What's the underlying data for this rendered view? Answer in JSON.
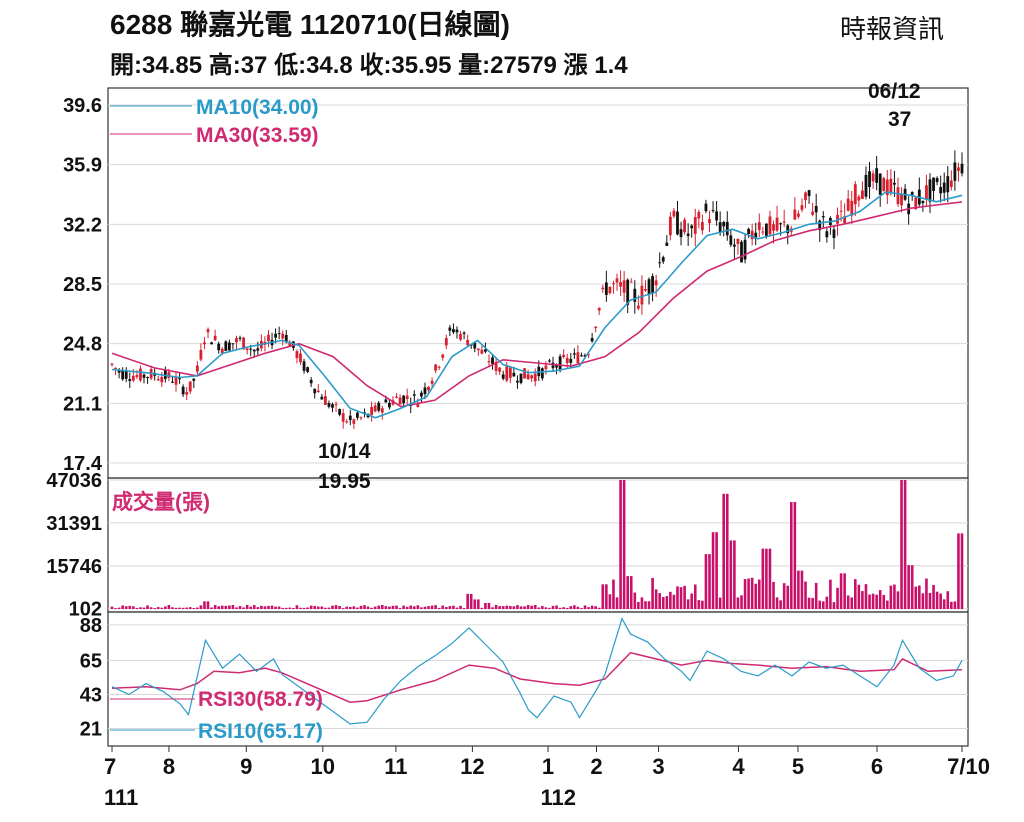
{
  "header": {
    "title": "6288  聯嘉光電 1120710(日線圖)",
    "ohlc": "開:34.85 高:37 低:34.8 收:35.95 量:27579 漲 1.4",
    "source": "時報資訊"
  },
  "colors": {
    "up": "#d8202f",
    "down": "#111111",
    "ma10": "#2a9bc8",
    "ma30": "#d02a72",
    "volume": "#c8106a",
    "rsi10": "#2a9bc8",
    "rsi30": "#d02a72",
    "grid": "#d8d8d8"
  },
  "chart_data": [
    {
      "type": "candlestick",
      "title": "",
      "ylim": [
        17.4,
        39.6
      ],
      "y_ticks": [
        "39.6",
        "35.9",
        "32.2",
        "28.5",
        "24.8",
        "21.1",
        "17.4"
      ],
      "series": [
        {
          "name": "MA10(34.00)",
          "key": "ma10"
        },
        {
          "name": "MA30(33.59)",
          "key": "ma30"
        }
      ],
      "annotations": [
        {
          "date": "10/14",
          "label_date": "10/14",
          "label_value": "19.95",
          "value": 19.95
        },
        {
          "date": "06/12",
          "label_date": "06/12",
          "label_value": "37",
          "value": 37
        }
      ],
      "price_path": [
        [
          0.0,
          23.5
        ],
        [
          0.01,
          23.0
        ],
        [
          0.03,
          22.8
        ],
        [
          0.05,
          22.9
        ],
        [
          0.07,
          22.7
        ],
        [
          0.09,
          21.8
        ],
        [
          0.1,
          23.0
        ],
        [
          0.11,
          25.5
        ],
        [
          0.13,
          24.6
        ],
        [
          0.15,
          25.0
        ],
        [
          0.17,
          24.3
        ],
        [
          0.2,
          25.6
        ],
        [
          0.22,
          24.0
        ],
        [
          0.24,
          22.0
        ],
        [
          0.26,
          20.8
        ],
        [
          0.28,
          19.95
        ],
        [
          0.3,
          20.3
        ],
        [
          0.32,
          21.0
        ],
        [
          0.34,
          21.5
        ],
        [
          0.36,
          21.3
        ],
        [
          0.38,
          23.0
        ],
        [
          0.4,
          25.8
        ],
        [
          0.42,
          25.0
        ],
        [
          0.44,
          24.0
        ],
        [
          0.46,
          23.0
        ],
        [
          0.48,
          22.8
        ],
        [
          0.5,
          22.9
        ],
        [
          0.52,
          23.5
        ],
        [
          0.54,
          23.8
        ],
        [
          0.56,
          24.3
        ],
        [
          0.58,
          28.4
        ],
        [
          0.6,
          28.2
        ],
        [
          0.62,
          27.6
        ],
        [
          0.64,
          29.0
        ],
        [
          0.66,
          32.5
        ],
        [
          0.68,
          31.5
        ],
        [
          0.7,
          33.0
        ],
        [
          0.72,
          32.0
        ],
        [
          0.74,
          30.3
        ],
        [
          0.76,
          32.3
        ],
        [
          0.78,
          31.8
        ],
        [
          0.8,
          32.2
        ],
        [
          0.82,
          33.8
        ],
        [
          0.84,
          31.8
        ],
        [
          0.86,
          32.5
        ],
        [
          0.88,
          34.5
        ],
        [
          0.9,
          34.9
        ],
        [
          0.92,
          34.3
        ],
        [
          0.94,
          33.5
        ],
        [
          0.96,
          34.2
        ],
        [
          0.98,
          34.6
        ],
        [
          1.0,
          35.95
        ]
      ],
      "ma10": [
        [
          0.0,
          23.2
        ],
        [
          0.04,
          23.0
        ],
        [
          0.08,
          22.7
        ],
        [
          0.1,
          22.8
        ],
        [
          0.13,
          24.2
        ],
        [
          0.16,
          24.6
        ],
        [
          0.2,
          25.0
        ],
        [
          0.22,
          24.7
        ],
        [
          0.25,
          22.8
        ],
        [
          0.28,
          20.8
        ],
        [
          0.31,
          20.2
        ],
        [
          0.34,
          20.8
        ],
        [
          0.37,
          21.5
        ],
        [
          0.4,
          24.0
        ],
        [
          0.43,
          25.0
        ],
        [
          0.46,
          23.5
        ],
        [
          0.49,
          23.0
        ],
        [
          0.52,
          23.1
        ],
        [
          0.55,
          23.4
        ],
        [
          0.58,
          25.8
        ],
        [
          0.61,
          27.5
        ],
        [
          0.64,
          28.0
        ],
        [
          0.67,
          29.8
        ],
        [
          0.7,
          31.5
        ],
        [
          0.73,
          31.9
        ],
        [
          0.76,
          31.3
        ],
        [
          0.79,
          31.7
        ],
        [
          0.82,
          32.2
        ],
        [
          0.85,
          32.4
        ],
        [
          0.88,
          33.0
        ],
        [
          0.91,
          34.2
        ],
        [
          0.94,
          34.0
        ],
        [
          0.97,
          33.6
        ],
        [
          1.0,
          34.0
        ]
      ],
      "ma30": [
        [
          0.0,
          24.2
        ],
        [
          0.05,
          23.3
        ],
        [
          0.1,
          22.8
        ],
        [
          0.14,
          23.5
        ],
        [
          0.18,
          24.2
        ],
        [
          0.22,
          24.8
        ],
        [
          0.26,
          24.0
        ],
        [
          0.3,
          22.2
        ],
        [
          0.34,
          20.9
        ],
        [
          0.38,
          21.3
        ],
        [
          0.42,
          22.8
        ],
        [
          0.46,
          23.8
        ],
        [
          0.5,
          23.6
        ],
        [
          0.54,
          23.4
        ],
        [
          0.58,
          24.0
        ],
        [
          0.62,
          25.5
        ],
        [
          0.66,
          27.6
        ],
        [
          0.7,
          29.3
        ],
        [
          0.74,
          30.2
        ],
        [
          0.78,
          31.2
        ],
        [
          0.82,
          31.8
        ],
        [
          0.86,
          32.2
        ],
        [
          0.9,
          32.7
        ],
        [
          0.94,
          33.2
        ],
        [
          0.97,
          33.4
        ],
        [
          1.0,
          33.59
        ]
      ]
    },
    {
      "type": "bar",
      "label": "成交量(張)",
      "ylim": [
        0,
        47036
      ],
      "y_ticks": [
        "47036",
        "31391",
        "15746",
        "102"
      ],
      "spikes": [
        [
          0.11,
          2800
        ],
        [
          0.42,
          5500
        ],
        [
          0.43,
          3500
        ],
        [
          0.44,
          2200
        ],
        [
          0.58,
          9000
        ],
        [
          0.6,
          47036
        ],
        [
          0.61,
          12000
        ],
        [
          0.7,
          20000
        ],
        [
          0.71,
          28000
        ],
        [
          0.72,
          42000
        ],
        [
          0.73,
          25000
        ],
        [
          0.77,
          22000
        ],
        [
          0.8,
          39000
        ],
        [
          0.81,
          14000
        ],
        [
          0.86,
          13000
        ],
        [
          0.93,
          47036
        ],
        [
          0.94,
          16000
        ],
        [
          1.0,
          27579
        ]
      ]
    },
    {
      "type": "line",
      "ylim": [
        11,
        95
      ],
      "y_ticks": [
        "88",
        "65",
        "43",
        "21"
      ],
      "series": [
        {
          "name": "RSI30(58.79)",
          "key": "rsi30"
        },
        {
          "name": "RSI10(65.17)",
          "key": "rsi10"
        }
      ],
      "rsi10": [
        [
          0.0,
          48
        ],
        [
          0.02,
          43
        ],
        [
          0.04,
          50
        ],
        [
          0.06,
          45
        ],
        [
          0.08,
          37
        ],
        [
          0.09,
          30
        ],
        [
          0.11,
          78
        ],
        [
          0.13,
          60
        ],
        [
          0.15,
          69
        ],
        [
          0.17,
          58
        ],
        [
          0.19,
          66
        ],
        [
          0.2,
          56
        ],
        [
          0.28,
          24
        ],
        [
          0.3,
          25
        ],
        [
          0.32,
          40
        ],
        [
          0.34,
          52
        ],
        [
          0.36,
          61
        ],
        [
          0.38,
          68
        ],
        [
          0.4,
          76
        ],
        [
          0.42,
          86
        ],
        [
          0.44,
          75
        ],
        [
          0.46,
          64
        ],
        [
          0.48,
          44
        ],
        [
          0.49,
          33
        ],
        [
          0.5,
          28
        ],
        [
          0.52,
          42
        ],
        [
          0.54,
          38
        ],
        [
          0.55,
          28
        ],
        [
          0.57,
          46
        ],
        [
          0.58,
          56
        ],
        [
          0.6,
          92
        ],
        [
          0.61,
          82
        ],
        [
          0.63,
          77
        ],
        [
          0.65,
          66
        ],
        [
          0.67,
          58
        ],
        [
          0.68,
          52
        ],
        [
          0.7,
          71
        ],
        [
          0.72,
          66
        ],
        [
          0.74,
          58
        ],
        [
          0.76,
          55
        ],
        [
          0.78,
          62
        ],
        [
          0.8,
          55
        ],
        [
          0.82,
          64
        ],
        [
          0.84,
          60
        ],
        [
          0.86,
          62
        ],
        [
          0.88,
          55
        ],
        [
          0.9,
          48
        ],
        [
          0.92,
          62
        ],
        [
          0.93,
          78
        ],
        [
          0.95,
          60
        ],
        [
          0.97,
          52
        ],
        [
          0.99,
          55
        ],
        [
          1.0,
          65
        ]
      ],
      "rsi30": [
        [
          0.0,
          47
        ],
        [
          0.04,
          48
        ],
        [
          0.08,
          46
        ],
        [
          0.1,
          50
        ],
        [
          0.12,
          58
        ],
        [
          0.15,
          57
        ],
        [
          0.18,
          60
        ],
        [
          0.2,
          57
        ],
        [
          0.28,
          38
        ],
        [
          0.3,
          39
        ],
        [
          0.34,
          46
        ],
        [
          0.38,
          52
        ],
        [
          0.42,
          62
        ],
        [
          0.45,
          60
        ],
        [
          0.48,
          53
        ],
        [
          0.52,
          50
        ],
        [
          0.55,
          49
        ],
        [
          0.58,
          53
        ],
        [
          0.61,
          70
        ],
        [
          0.64,
          66
        ],
        [
          0.67,
          62
        ],
        [
          0.7,
          65
        ],
        [
          0.73,
          63
        ],
        [
          0.76,
          62
        ],
        [
          0.8,
          60
        ],
        [
          0.84,
          61
        ],
        [
          0.88,
          58
        ],
        [
          0.92,
          59
        ],
        [
          0.93,
          66
        ],
        [
          0.96,
          58
        ],
        [
          1.0,
          59
        ]
      ]
    }
  ],
  "x_axis": {
    "ticks": [
      {
        "label": "7",
        "pos": 0.0
      },
      {
        "label": "8",
        "pos": 0.067
      },
      {
        "label": "9",
        "pos": 0.158
      },
      {
        "label": "10",
        "pos": 0.248
      },
      {
        "label": "11",
        "pos": 0.334
      },
      {
        "label": "12",
        "pos": 0.424
      },
      {
        "label": "1",
        "pos": 0.513
      },
      {
        "label": "2",
        "pos": 0.57
      },
      {
        "label": "3",
        "pos": 0.643
      },
      {
        "label": "4",
        "pos": 0.737
      },
      {
        "label": "5",
        "pos": 0.807
      },
      {
        "label": "6",
        "pos": 0.9
      },
      {
        "label": "7/10",
        "pos": 1.0
      }
    ],
    "year_labels": [
      {
        "label": "111",
        "pos": 0.0
      },
      {
        "label": "112",
        "pos": 0.525
      }
    ]
  }
}
